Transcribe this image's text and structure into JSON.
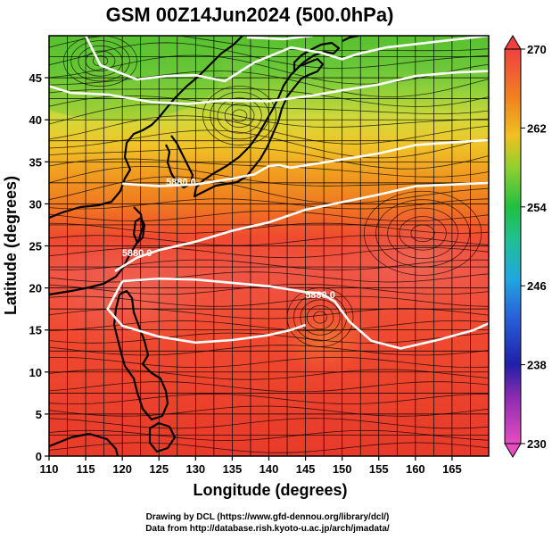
{
  "title": "GSM 00Z14Jun2024 (500.0hPa)",
  "chart_data": {
    "type": "heatmap",
    "title": "GSM 00Z14Jun2024 (500.0hPa)",
    "xlabel": "Longitude (degrees)",
    "ylabel": "Latitude (degrees)",
    "xlim": [
      110,
      170
    ],
    "ylim": [
      0,
      50
    ],
    "x_ticks": [
      "110",
      "115",
      "120",
      "125",
      "130",
      "135",
      "140",
      "145",
      "150",
      "155",
      "160",
      "165"
    ],
    "y_ticks": [
      "0",
      "5",
      "10",
      "15",
      "20",
      "25",
      "30",
      "35",
      "40",
      "45"
    ],
    "colorbar": {
      "min": 230,
      "max": 270,
      "ticks": [
        "230",
        "238",
        "246",
        "254",
        "262",
        "270"
      ],
      "colors": {
        "230": "#e040c0",
        "238": "#2020b0",
        "246": "#20a0e0",
        "254": "#20c040",
        "262": "#f0c020",
        "270": "#f04040"
      }
    },
    "contour_labels": [
      {
        "text": "5880.0",
        "lon": 128,
        "lat": 32.2
      },
      {
        "text": "5880.0",
        "lon": 122,
        "lat": 23.8
      },
      {
        "text": "5880.0",
        "lon": 147,
        "lat": 18.8
      }
    ],
    "contours": [
      {
        "name": "5880",
        "points": [
          [
            120,
            32.4
          ],
          [
            125,
            32.1
          ],
          [
            130,
            32.3
          ],
          [
            135,
            33.0
          ],
          [
            138,
            33.5
          ],
          [
            140,
            34.5
          ],
          [
            141.5,
            34.6
          ],
          [
            143,
            34.3
          ],
          [
            148,
            35.0
          ],
          [
            155,
            36.0
          ],
          [
            160,
            37.0
          ],
          [
            165,
            37.3
          ],
          [
            170,
            37.6
          ]
        ]
      },
      {
        "name": "5880-south",
        "points": [
          [
            119,
            22.0
          ],
          [
            122,
            23.6
          ],
          [
            125,
            24.5
          ],
          [
            130,
            25.5
          ],
          [
            135,
            26.8
          ],
          [
            140,
            27.8
          ],
          [
            145,
            29.3
          ],
          [
            150,
            30.2
          ],
          [
            155,
            31.1
          ],
          [
            160,
            32.1
          ],
          [
            165,
            32.3
          ],
          [
            170,
            32.5
          ]
        ]
      },
      {
        "name": "5880-lower",
        "points": [
          [
            120,
            20.8
          ],
          [
            125,
            21.1
          ],
          [
            130,
            21.0
          ],
          [
            135,
            20.6
          ],
          [
            140,
            20.2
          ],
          [
            143,
            19.8
          ],
          [
            145,
            19.5
          ],
          [
            147,
            19.4
          ],
          [
            149,
            18.4
          ],
          [
            151,
            16.0
          ],
          [
            154,
            13.7
          ],
          [
            158,
            12.8
          ],
          [
            163,
            13.8
          ],
          [
            168,
            15.0
          ],
          [
            170,
            15.8
          ]
        ],
        "closing": [
          [
            120,
            20.8
          ],
          [
            118,
            17.5
          ],
          [
            120,
            15.5
          ],
          [
            125,
            14.2
          ],
          [
            130,
            13.5
          ],
          [
            135,
            13.8
          ],
          [
            140,
            14.4
          ],
          [
            143,
            15.0
          ],
          [
            145,
            15.6
          ]
        ]
      },
      {
        "name": "north-1",
        "points": [
          [
            115,
            50
          ],
          [
            117,
            46.5
          ],
          [
            122,
            44.8
          ],
          [
            126,
            45.2
          ],
          [
            130,
            45.3
          ],
          [
            134,
            44.6
          ],
          [
            138,
            46.8
          ],
          [
            143,
            48.6
          ],
          [
            147,
            48.0
          ],
          [
            150,
            47.2
          ],
          [
            152,
            47.8
          ],
          [
            156,
            48.6
          ],
          [
            160,
            49.0
          ],
          [
            170,
            50
          ]
        ]
      },
      {
        "name": "north-2",
        "points": [
          [
            110,
            44.0
          ],
          [
            113,
            43.2
          ],
          [
            118,
            43.0
          ],
          [
            124,
            42.1
          ],
          [
            129,
            41.9
          ],
          [
            134,
            42.3
          ],
          [
            140,
            42.2
          ],
          [
            146,
            42.9
          ],
          [
            150,
            43.5
          ],
          [
            155,
            44.2
          ],
          [
            160,
            45.2
          ],
          [
            165,
            45.6
          ],
          [
            170,
            45.8
          ]
        ]
      },
      {
        "name": "north-3",
        "points": [
          [
            137,
            49.8
          ],
          [
            142,
            49.6
          ],
          [
            146,
            50
          ]
        ]
      }
    ],
    "land": "Eurasian coast, Korea, Japan, Philippines, Taiwan outlined in black",
    "grid": "on"
  },
  "credits": {
    "line1": "Drawing by DCL (https://www.gfd-dennou.org/library/dcl/)",
    "line2": "Data from http://database.rish.kyoto-u.ac.jp/arch/jmadata/"
  }
}
